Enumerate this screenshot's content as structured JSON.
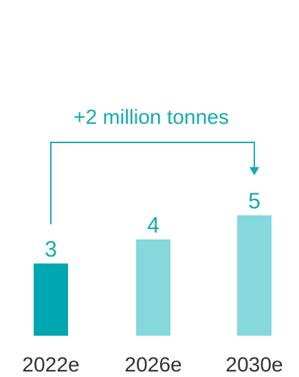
{
  "chart_data": {
    "type": "bar",
    "categories": [
      "2022e",
      "2026e",
      "2030e"
    ],
    "values": [
      3,
      4,
      5
    ],
    "title": "",
    "xlabel": "",
    "ylabel": "",
    "ylim": [
      0,
      5.5
    ],
    "grid": false,
    "annotation": "+2 million tonnes",
    "colors": {
      "highlight": "#00a6b0",
      "normal": "#85d8dc",
      "text_accent": "#14aab3",
      "text_axis": "#333333"
    }
  }
}
